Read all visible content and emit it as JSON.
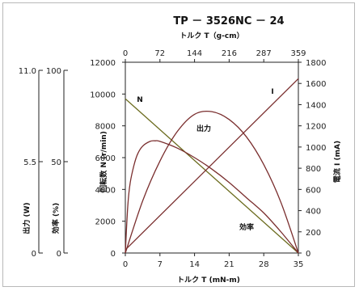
{
  "chart_data": {
    "type": "line",
    "title": "TP － 3526NC － 24",
    "top_axis": {
      "label": "トルク  T（g-cm）",
      "ticks": [
        "0",
        "72",
        "144",
        "216",
        "287",
        "359"
      ],
      "range": [
        0,
        359
      ]
    },
    "bottom_axis": {
      "label": "トルク T  (mN-m)",
      "ticks": [
        "0",
        "7",
        "14",
        "21",
        "28",
        "35"
      ],
      "range": [
        0,
        35
      ]
    },
    "left_axis_speed": {
      "label": "回転数  N  (r/min)",
      "ticks": [
        "0",
        "2000",
        "4000",
        "6000",
        "8000",
        "10000",
        "12000"
      ],
      "range": [
        0,
        12000
      ]
    },
    "right_axis_current": {
      "label": "電流  I  (mA)",
      "ticks": [
        "0",
        "200",
        "400",
        "600",
        "800",
        "1000",
        "1200",
        "1400",
        "1600",
        "1800"
      ],
      "range": [
        0,
        1800
      ]
    },
    "left_axis_efficiency": {
      "label": "効率  (%)",
      "ticks": [
        "0",
        "50",
        "100"
      ],
      "range": [
        0,
        100
      ]
    },
    "left_axis_output": {
      "label": "出力  (W)",
      "ticks": [
        "0",
        "5.5",
        "11.0"
      ],
      "range": [
        0,
        11
      ]
    },
    "grid": false,
    "series": [
      {
        "name": "N",
        "axis": "speed",
        "color": "#6b6b1e",
        "x": [
          0,
          35
        ],
        "y": [
          9700,
          0
        ]
      },
      {
        "name": "I",
        "axis": "current",
        "color": "#7a2e2e",
        "x": [
          0,
          35
        ],
        "y": [
          30,
          1645
        ]
      },
      {
        "name": "出力",
        "axis": "output",
        "color": "#7a2e2e",
        "x": [
          0,
          3.5,
          7,
          10.5,
          14,
          17.5,
          21,
          24.5,
          28,
          31.5,
          35
        ],
        "y": [
          0,
          3.0,
          5.3,
          7.0,
          8.0,
          8.15,
          7.7,
          6.7,
          5.1,
          2.9,
          0
        ]
      },
      {
        "name": "効率",
        "axis": "efficiency",
        "color": "#7a2e2e",
        "x": [
          0,
          0.5,
          1,
          1.75,
          2.5,
          3.5,
          5,
          6,
          7,
          10.5,
          14,
          17.5,
          21,
          24.5,
          28,
          31.5,
          35
        ],
        "y": [
          0,
          25,
          37,
          46,
          52,
          56,
          58.5,
          58.8,
          58.5,
          55,
          50,
          44,
          37,
          29,
          21,
          11,
          0
        ]
      }
    ]
  }
}
